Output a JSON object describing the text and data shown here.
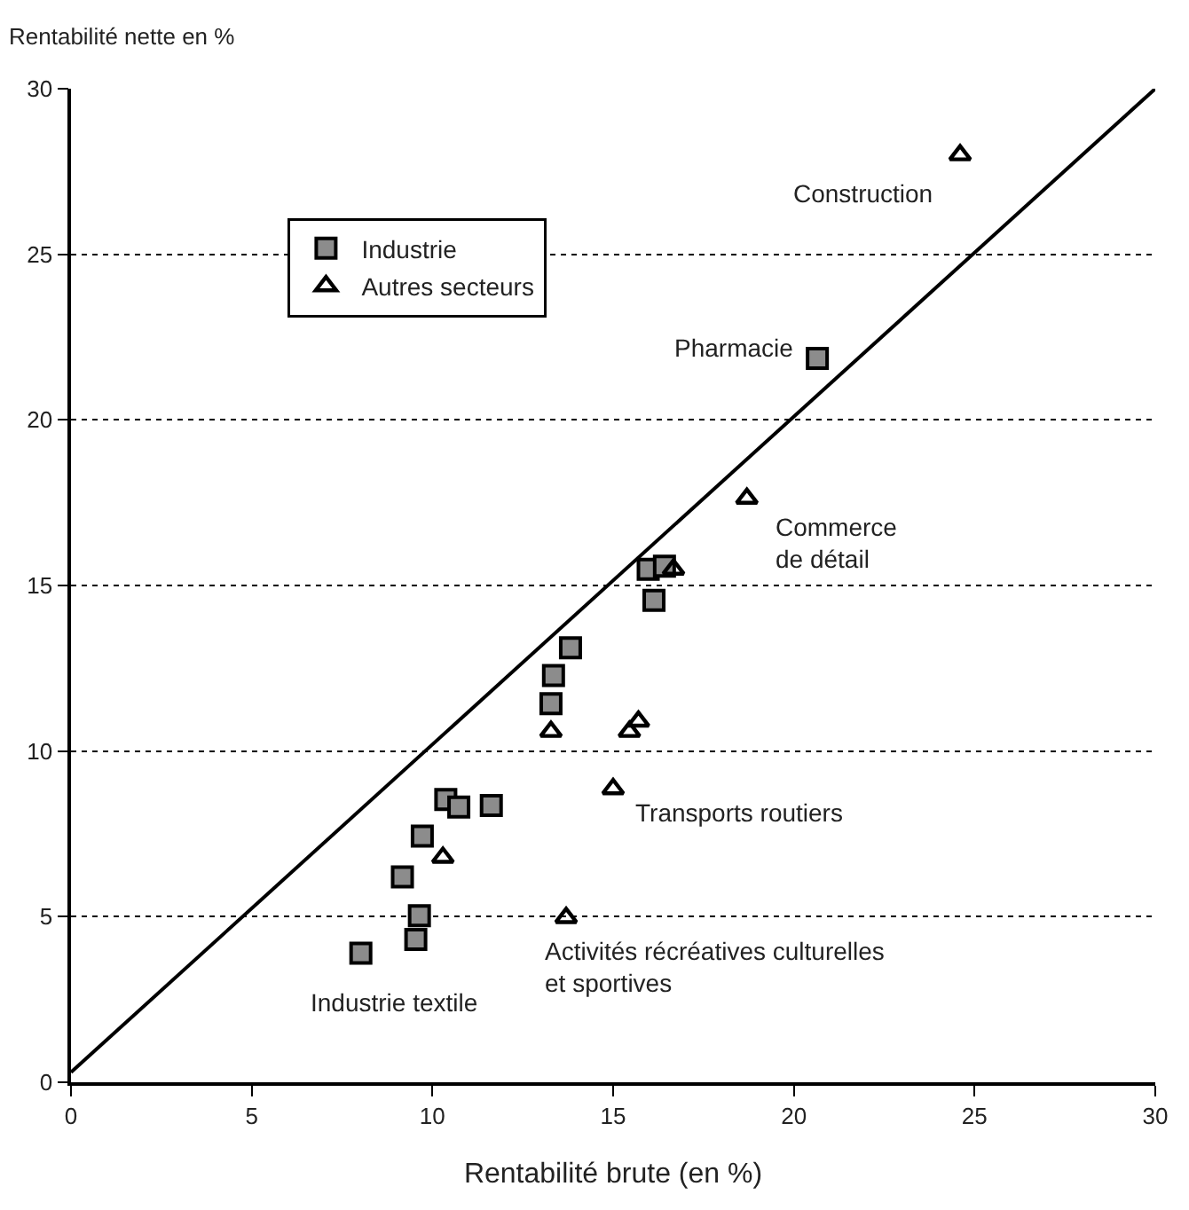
{
  "chart_data": {
    "type": "scatter",
    "xlabel": "Rentabilité brute (en %)",
    "ylabel": "Rentabilité nette en %",
    "xlim": [
      0,
      30
    ],
    "xticks": [
      0,
      5,
      10,
      15,
      20,
      25,
      30
    ],
    "ylim": [
      0,
      30
    ],
    "yticks": [
      0,
      5,
      10,
      15,
      20,
      25,
      30
    ],
    "grid": "y",
    "legend": "top left",
    "series": [
      {
        "name": "Industrie",
        "color": "#8c8c8c",
        "marker": "square",
        "x": [
          13.82,
          13.35,
          13.28,
          10.37,
          10.73,
          11.63,
          9.72,
          9.17,
          9.64,
          9.54,
          8.02,
          20.65,
          15.97,
          16.42,
          16.13
        ],
        "values": [
          13.12,
          12.28,
          11.43,
          8.54,
          8.31,
          8.36,
          7.43,
          6.2,
          5.03,
          4.31,
          3.9,
          21.86,
          15.49,
          15.58,
          14.55
        ]
      },
      {
        "name": "Autres secteurs",
        "color": "#000000",
        "marker": "triangle",
        "x": [
          13.28,
          15.45,
          15.7,
          15.0,
          10.29,
          13.7,
          18.7,
          16.67,
          24.6
        ],
        "values": [
          10.59,
          10.59,
          10.9,
          8.86,
          6.79,
          4.97,
          17.63,
          15.49,
          28.0
        ]
      },
      {
        "type": "line",
        "color": "#000000",
        "marker": "none",
        "line_style": "solid",
        "x": [
          0,
          30
        ],
        "values": [
          0.3,
          30
        ]
      }
    ],
    "annotations": [
      "Construction",
      "Pharmacie",
      "Commerce\nde détail",
      "Transports routiers",
      "Activités récréatives culturelles\net sportives",
      "Industrie textile"
    ]
  }
}
